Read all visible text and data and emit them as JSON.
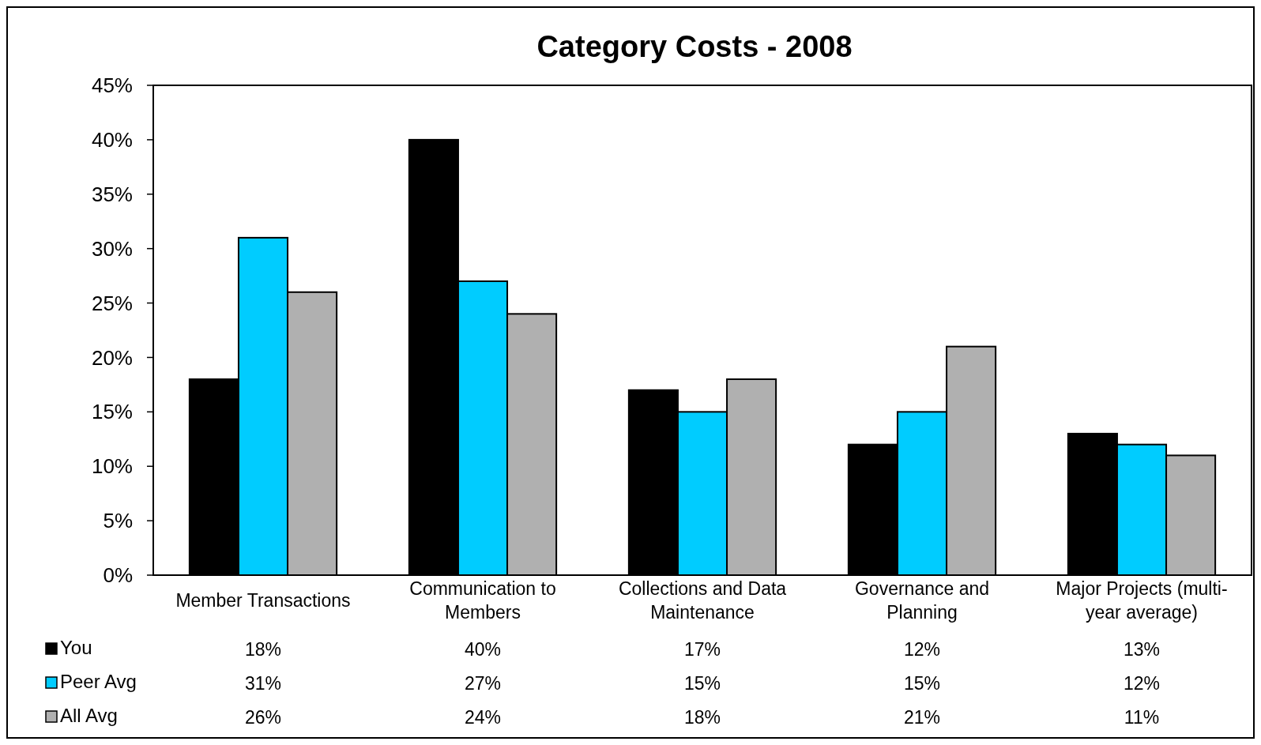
{
  "chart_data": {
    "type": "bar",
    "title": "Category Costs  - 2008",
    "categories": [
      "Member Transactions",
      "Communication to Members",
      "Collections and Data Maintenance",
      "Governance and Planning",
      "Major Projects (multi-year average)"
    ],
    "series": [
      {
        "name": "You",
        "color": "#000000",
        "values": [
          18,
          40,
          17,
          12,
          13
        ],
        "value_labels": [
          "18%",
          "40%",
          "17%",
          "12%",
          "13%"
        ]
      },
      {
        "name": "Peer Avg",
        "color": "#00ccff",
        "values": [
          31,
          27,
          15,
          15,
          12
        ],
        "value_labels": [
          "31%",
          "27%",
          "15%",
          "15%",
          "12%"
        ]
      },
      {
        "name": "All Avg",
        "color": "#b0b0b0",
        "values": [
          26,
          24,
          18,
          21,
          11
        ],
        "value_labels": [
          "26%",
          "24%",
          "18%",
          "21%",
          "11%"
        ]
      }
    ],
    "ylim": [
      0,
      45
    ],
    "yticks": [
      {
        "value": 0,
        "label": "0%"
      },
      {
        "value": 5,
        "label": "5%"
      },
      {
        "value": 10,
        "label": "10%"
      },
      {
        "value": 15,
        "label": "15%"
      },
      {
        "value": 20,
        "label": "20%"
      },
      {
        "value": 25,
        "label": "25%"
      },
      {
        "value": 30,
        "label": "30%"
      },
      {
        "value": 35,
        "label": "35%"
      },
      {
        "value": 40,
        "label": "40%"
      },
      {
        "value": 45,
        "label": "45%"
      }
    ],
    "grid": false,
    "legend": "bottom left"
  }
}
